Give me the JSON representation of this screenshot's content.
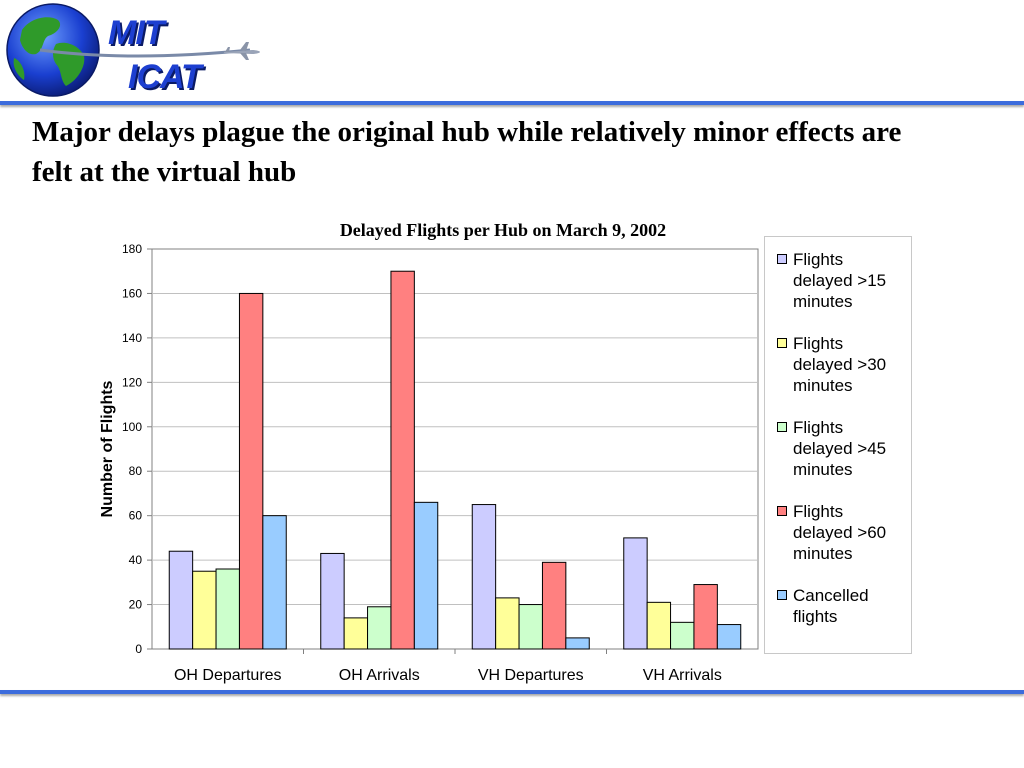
{
  "header": {
    "logo_line1": "MIT",
    "logo_line2": "ICAT",
    "globe_icon": "globe-icon",
    "plane_icon": "airplane-icon"
  },
  "slide": {
    "title": "Major delays plague the original hub while relatively minor effects are felt at the virtual hub"
  },
  "colors": {
    "rule": "#3c6cdc",
    "logo_text": "#1d3fd0"
  },
  "chart_data": {
    "type": "bar",
    "title": "Delayed Flights per Hub on March 9, 2002",
    "xlabel": "",
    "ylabel": "Number of Flights",
    "ylim": [
      0,
      180
    ],
    "yticks": [
      "0",
      "20",
      "40",
      "60",
      "80",
      "100",
      "120",
      "140",
      "160",
      "180"
    ],
    "grid": true,
    "legend_position": "right",
    "categories": [
      "OH Departures",
      "OH Arrivals",
      "VH Departures",
      "VH Arrivals"
    ],
    "series": [
      {
        "name": "Flights delayed  >15 minutes",
        "color": "#ccccff",
        "values": [
          44,
          43,
          65,
          50
        ]
      },
      {
        "name": "Flights delayed  >30 minutes",
        "color": "#ffff99",
        "values": [
          35,
          14,
          23,
          21
        ]
      },
      {
        "name": "Flights delayed  >45 minutes",
        "color": "#ccffcc",
        "values": [
          36,
          19,
          20,
          12
        ]
      },
      {
        "name": "Flights delayed  >60 minutes",
        "color": "#ff8080",
        "values": [
          160,
          170,
          39,
          29
        ]
      },
      {
        "name": "Cancelled flights",
        "color": "#99ccff",
        "values": [
          60,
          66,
          5,
          11
        ]
      }
    ],
    "legend_labels": [
      "Flights\ndelayed  >15\nminutes",
      "Flights\ndelayed  >30\nminutes",
      "Flights\ndelayed  >45\nminutes",
      "Flights\ndelayed  >60\nminutes",
      "Cancelled\nflights"
    ]
  }
}
